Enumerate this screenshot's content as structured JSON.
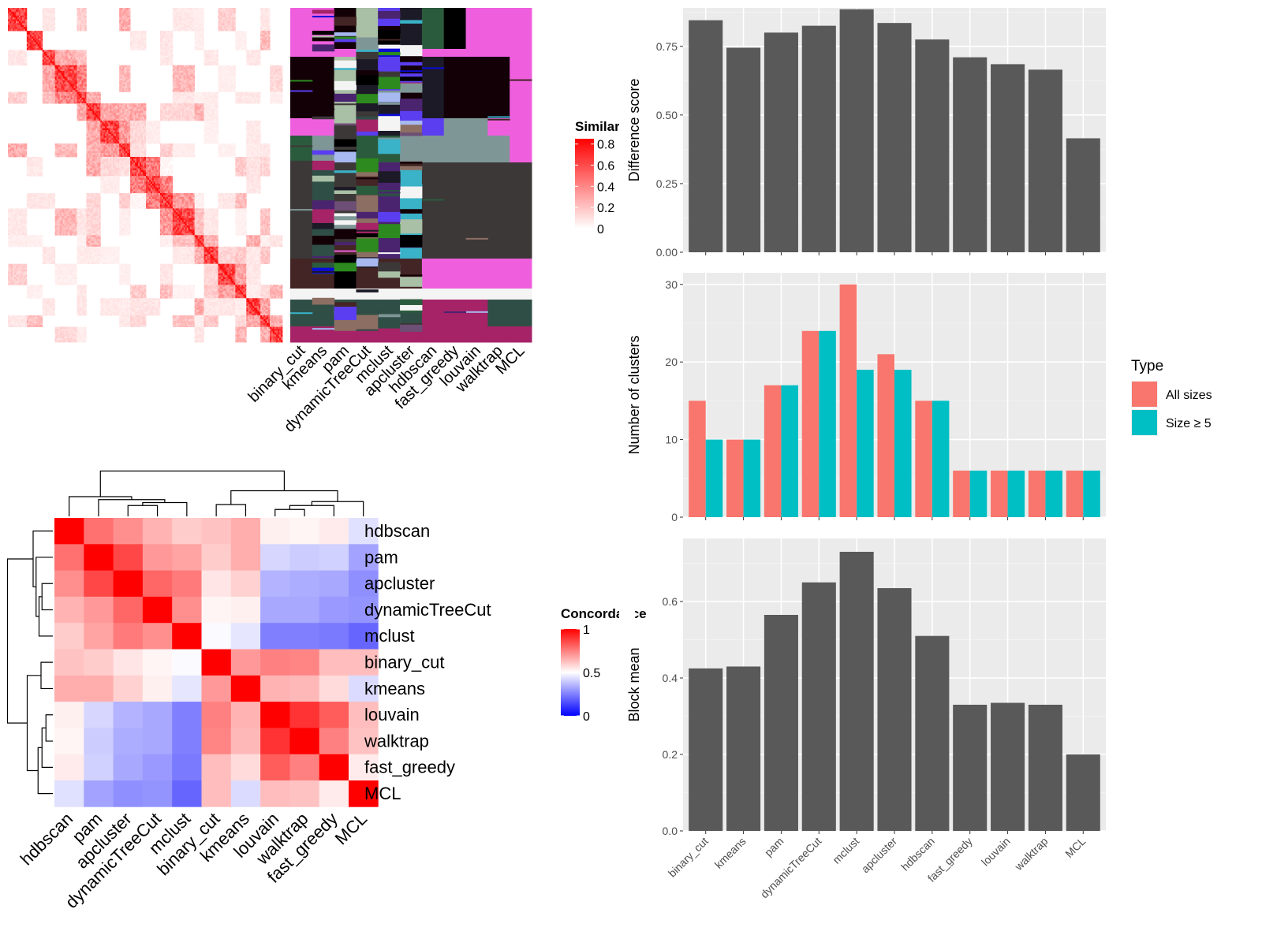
{
  "chart_data": [
    {
      "type": "heatmap",
      "id": "similarity-heatmap",
      "legend": {
        "title": "Similarity",
        "ticks": [
          0,
          0.2,
          0.4,
          0.6,
          0.8
        ],
        "tick_labels": [
          "0",
          "0.2",
          "0.4",
          "0.6",
          "0.8"
        ],
        "colors": [
          "#ffffff",
          "#ff0000"
        ]
      },
      "blocks": [
        12,
        10,
        8,
        14,
        6,
        9,
        12,
        7,
        10,
        9,
        8,
        14,
        6,
        9,
        11,
        7,
        9,
        6,
        8
      ]
    },
    {
      "type": "table",
      "id": "cluster-label-matrix",
      "methods": [
        "binary_cut",
        "kmeans",
        "pam",
        "dynamicTreeCut",
        "mclust",
        "apcluster",
        "hdbscan",
        "fast_greedy",
        "louvain",
        "walktrap",
        "MCL"
      ],
      "palette": [
        "#ef5fdd",
        "#130006",
        "#a9bfa6",
        "#1c1a26",
        "#5a3eef",
        "#3ab2c8",
        "#0b0bd6",
        "#2b5b3d",
        "#7f9696",
        "#3d3838",
        "#8c6f62",
        "#2f4f46",
        "#4b2470",
        "#442525",
        "#a52366",
        "#f4f4f4",
        "#2d8a1e",
        "#a7b9f0",
        "#000000",
        "#6d4e74"
      ]
    },
    {
      "type": "heatmap",
      "id": "concordance-heatmap",
      "methods": [
        "hdbscan",
        "pam",
        "apcluster",
        "dynamicTreeCut",
        "mclust",
        "binary_cut",
        "kmeans",
        "louvain",
        "walktrap",
        "fast_greedy",
        "MCL"
      ],
      "values": [
        [
          1.0,
          0.78,
          0.72,
          0.65,
          0.6,
          0.62,
          0.66,
          0.53,
          0.52,
          0.54,
          0.44
        ],
        [
          0.78,
          1.0,
          0.86,
          0.7,
          0.68,
          0.6,
          0.66,
          0.42,
          0.4,
          0.41,
          0.32
        ],
        [
          0.72,
          0.86,
          1.0,
          0.8,
          0.76,
          0.55,
          0.59,
          0.35,
          0.34,
          0.33,
          0.28
        ],
        [
          0.65,
          0.7,
          0.8,
          1.0,
          0.72,
          0.52,
          0.53,
          0.33,
          0.33,
          0.3,
          0.29
        ],
        [
          0.6,
          0.68,
          0.76,
          0.72,
          1.0,
          0.49,
          0.45,
          0.25,
          0.25,
          0.24,
          0.2
        ],
        [
          0.62,
          0.6,
          0.55,
          0.52,
          0.49,
          1.0,
          0.7,
          0.75,
          0.74,
          0.63,
          0.63
        ],
        [
          0.66,
          0.66,
          0.59,
          0.53,
          0.45,
          0.7,
          1.0,
          0.65,
          0.64,
          0.57,
          0.43
        ],
        [
          0.53,
          0.42,
          0.35,
          0.33,
          0.25,
          0.75,
          0.65,
          1.0,
          0.9,
          0.82,
          0.63
        ],
        [
          0.52,
          0.4,
          0.34,
          0.33,
          0.25,
          0.74,
          0.64,
          0.9,
          1.0,
          0.75,
          0.62
        ],
        [
          0.54,
          0.41,
          0.33,
          0.3,
          0.24,
          0.63,
          0.57,
          0.82,
          0.75,
          1.0,
          0.54
        ],
        [
          0.44,
          0.32,
          0.28,
          0.29,
          0.2,
          0.63,
          0.43,
          0.63,
          0.62,
          0.54,
          1.0
        ]
      ],
      "legend": {
        "title": "Concordance",
        "ticks": [
          0,
          0.5,
          1
        ],
        "tick_labels": [
          "0",
          "0.5",
          "1"
        ],
        "colors": [
          "#0000ff",
          "#ffffff",
          "#ff0000"
        ]
      }
    },
    {
      "type": "bar",
      "id": "difference-score",
      "categories": [
        "binary_cut",
        "kmeans",
        "pam",
        "dynamicTreeCut",
        "mclust",
        "apcluster",
        "hdbscan",
        "fast_greedy",
        "louvain",
        "walktrap",
        "MCL"
      ],
      "values": [
        0.845,
        0.745,
        0.8,
        0.825,
        0.885,
        0.835,
        0.775,
        0.71,
        0.685,
        0.665,
        0.415
      ],
      "ylabel": "Difference score",
      "ylim": [
        0,
        0.89
      ],
      "yticks": [
        0,
        0.25,
        0.5,
        0.75
      ],
      "ytick_labels": [
        "0.00",
        "0.25",
        "0.50",
        "0.75"
      ],
      "color": "#595959",
      "grid": true
    },
    {
      "type": "bar",
      "id": "number-of-clusters",
      "categories": [
        "binary_cut",
        "kmeans",
        "pam",
        "dynamicTreeCut",
        "mclust",
        "apcluster",
        "hdbscan",
        "fast_greedy",
        "louvain",
        "walktrap",
        "MCL"
      ],
      "series": [
        {
          "name": "All sizes",
          "values": [
            15,
            10,
            17,
            24,
            30,
            21,
            15,
            6,
            6,
            6,
            6
          ],
          "color": "#f8766d"
        },
        {
          "name": "Size ≥ 5",
          "values": [
            10,
            10,
            17,
            24,
            19,
            19,
            15,
            6,
            6,
            6,
            6
          ],
          "color": "#00bfc4"
        }
      ],
      "ylabel": "Number of clusters",
      "ylim": [
        0,
        31.5
      ],
      "yticks": [
        0,
        10,
        20,
        30
      ],
      "ytick_labels": [
        "0",
        "10",
        "20",
        "30"
      ],
      "legend": {
        "title": "Type",
        "placement": "right"
      },
      "grid": true
    },
    {
      "type": "bar",
      "id": "block-mean",
      "categories": [
        "binary_cut",
        "kmeans",
        "pam",
        "dynamicTreeCut",
        "mclust",
        "apcluster",
        "hdbscan",
        "fast_greedy",
        "louvain",
        "walktrap",
        "MCL"
      ],
      "values": [
        0.425,
        0.43,
        0.565,
        0.65,
        0.73,
        0.635,
        0.51,
        0.33,
        0.335,
        0.33,
        0.2
      ],
      "ylabel": "Block mean",
      "ylim": [
        0,
        0.765
      ],
      "yticks": [
        0,
        0.2,
        0.4,
        0.6
      ],
      "ytick_labels": [
        "0.0",
        "0.2",
        "0.4",
        "0.6"
      ],
      "color": "#595959",
      "grid": true
    }
  ]
}
